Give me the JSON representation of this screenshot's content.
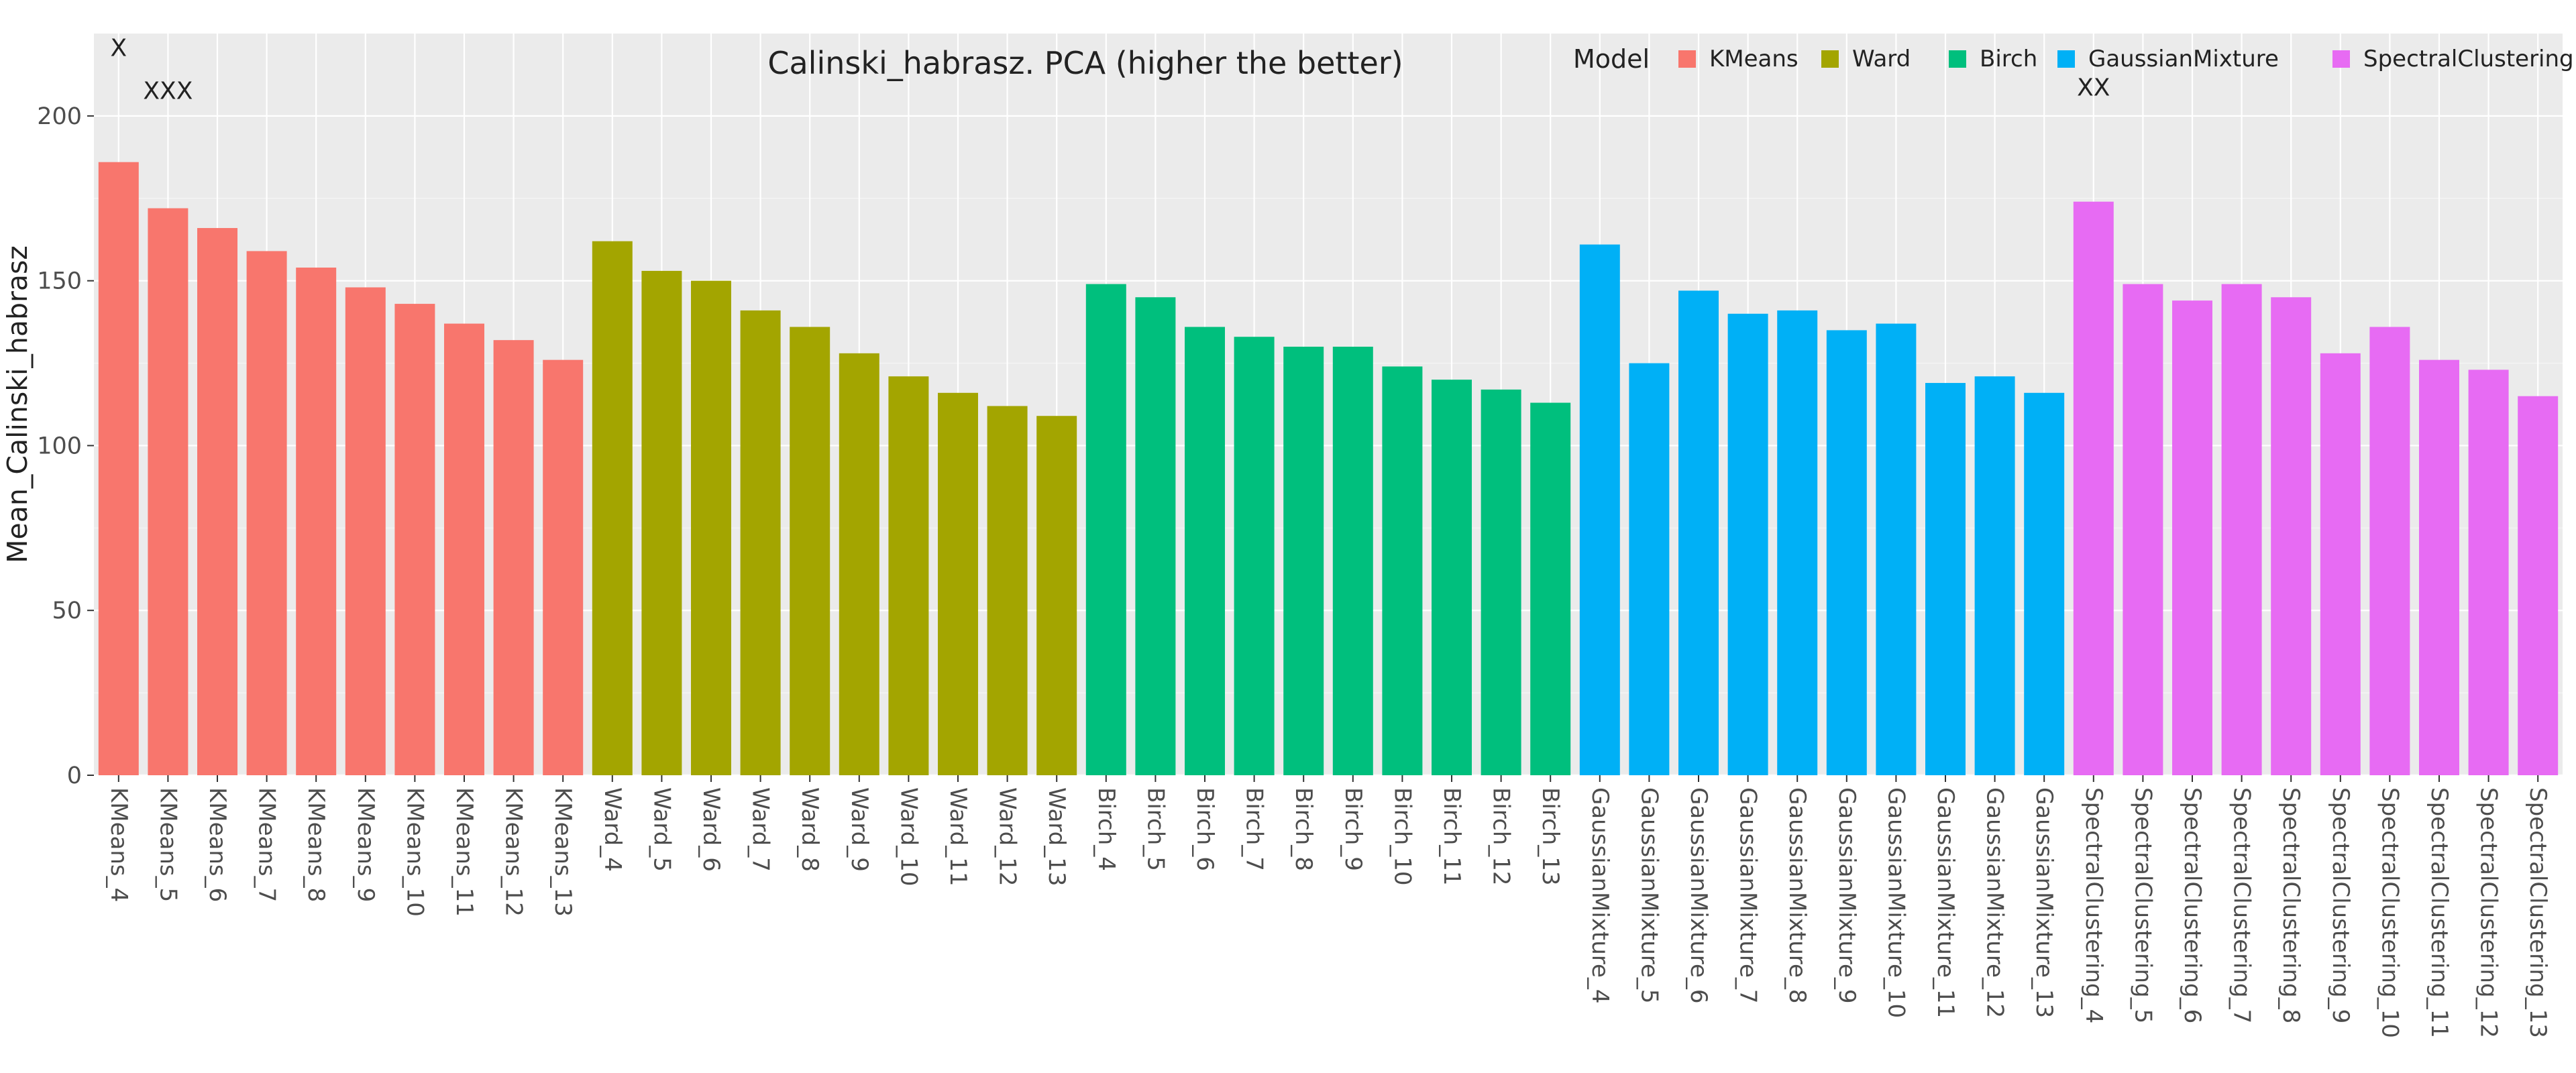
{
  "chart_data": {
    "type": "bar",
    "title": "Calinski_habrasz. PCA (higher the better)",
    "ylabel": "Mean_Calinski_habrasz",
    "xlabel": "",
    "ylim": [
      0,
      225
    ],
    "yticks": [
      0,
      50,
      100,
      150,
      200
    ],
    "grid": true,
    "legend_title": "Model",
    "legend_position": "top-right",
    "series": [
      {
        "name": "KMeans",
        "color": "#F8766D",
        "categories": [
          "KMeans_4",
          "KMeans_5",
          "KMeans_6",
          "KMeans_7",
          "KMeans_8",
          "KMeans_9",
          "KMeans_10",
          "KMeans_11",
          "KMeans_12",
          "KMeans_13"
        ],
        "values": [
          186,
          172,
          166,
          159,
          154,
          148,
          143,
          137,
          132,
          126
        ]
      },
      {
        "name": "Ward",
        "color": "#A3A500",
        "categories": [
          "Ward_4",
          "Ward_5",
          "Ward_6",
          "Ward_7",
          "Ward_8",
          "Ward_9",
          "Ward_10",
          "Ward_11",
          "Ward_12",
          "Ward_13"
        ],
        "values": [
          162,
          153,
          150,
          141,
          136,
          128,
          121,
          116,
          112,
          109
        ]
      },
      {
        "name": "Birch",
        "color": "#00BF7D",
        "categories": [
          "Birch_4",
          "Birch_5",
          "Birch_6",
          "Birch_7",
          "Birch_8",
          "Birch_9",
          "Birch_10",
          "Birch_11",
          "Birch_12",
          "Birch_13"
        ],
        "values": [
          149,
          145,
          136,
          133,
          130,
          130,
          124,
          120,
          117,
          113
        ]
      },
      {
        "name": "GaussianMixture",
        "color": "#00B0F6",
        "categories": [
          "GaussianMixture_4",
          "GaussianMixture_5",
          "GaussianMixture_6",
          "GaussianMixture_7",
          "GaussianMixture_8",
          "GaussianMixture_9",
          "GaussianMixture_10",
          "GaussianMixture_11",
          "GaussianMixture_12",
          "GaussianMixture_13"
        ],
        "values": [
          161,
          125,
          147,
          140,
          141,
          135,
          137,
          119,
          121,
          116
        ]
      },
      {
        "name": "SpectralClustering",
        "color": "#E76BF3",
        "categories": [
          "SpectralClustering_4",
          "SpectralClustering_5",
          "SpectralClustering_6",
          "SpectralClustering_7",
          "SpectralClustering_8",
          "SpectralClustering_9",
          "SpectralClustering_10",
          "SpectralClustering_11",
          "SpectralClustering_12",
          "SpectralClustering_13"
        ],
        "values": [
          174,
          149,
          144,
          149,
          145,
          128,
          136,
          126,
          123,
          115
        ]
      }
    ],
    "annotations": [
      {
        "text": "X",
        "x": "KMeans_4",
        "y": 221
      },
      {
        "text": "XXX",
        "x": "KMeans_5",
        "y": 208
      },
      {
        "text": "XX",
        "x": "SpectralClustering_4",
        "y": 209
      }
    ]
  }
}
